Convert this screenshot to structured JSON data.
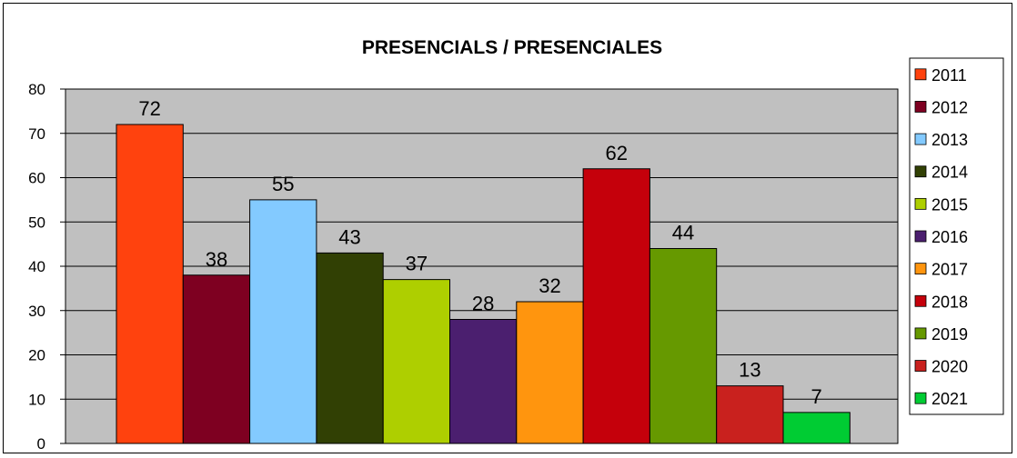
{
  "chart_data": {
    "type": "bar",
    "title": "PRESENCIALS / PRESENCIALES",
    "xlabel": "",
    "ylabel": "",
    "ylim": [
      0,
      80
    ],
    "yticks": [
      0,
      10,
      20,
      30,
      40,
      50,
      60,
      70,
      80
    ],
    "grid": true,
    "legend_position": "right",
    "series": [
      {
        "name": "2011",
        "values": [
          72
        ],
        "color": "#ff420e"
      },
      {
        "name": "2012",
        "values": [
          38
        ],
        "color": "#7e0021"
      },
      {
        "name": "2013",
        "values": [
          55
        ],
        "color": "#83caff"
      },
      {
        "name": "2014",
        "values": [
          43
        ],
        "color": "#314004"
      },
      {
        "name": "2015",
        "values": [
          37
        ],
        "color": "#aecf00"
      },
      {
        "name": "2016",
        "values": [
          28
        ],
        "color": "#4b1f6f"
      },
      {
        "name": "2017",
        "values": [
          32
        ],
        "color": "#ff950e"
      },
      {
        "name": "2018",
        "values": [
          62
        ],
        "color": "#c5000b"
      },
      {
        "name": "2019",
        "values": [
          44
        ],
        "color": "#669900"
      },
      {
        "name": "2020",
        "values": [
          13
        ],
        "color": "#c9211e"
      },
      {
        "name": "2021",
        "values": [
          7
        ],
        "color": "#00cc33"
      }
    ],
    "plot_background": "#c0c0c0"
  }
}
